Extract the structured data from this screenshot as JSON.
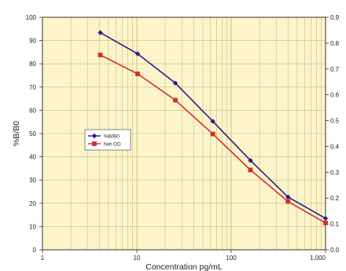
{
  "chart_data": {
    "type": "line",
    "title": "",
    "xlabel": "Concentration pg/mL",
    "ylabel": "%B/B0",
    "xscale": "log",
    "xlim": [
      1,
      1000
    ],
    "ylim": [
      0,
      100
    ],
    "y2lim": [
      0,
      0.9
    ],
    "x_tick_labels": [
      "1",
      "10",
      "100",
      "1,000"
    ],
    "y_tick_labels": [
      "0",
      "10",
      "20",
      "30",
      "40",
      "50",
      "60",
      "70",
      "80",
      "90",
      "100"
    ],
    "y2_tick_labels": [
      "0.0",
      "0.1",
      "0.2",
      "0.3",
      "0.4",
      "0.5",
      "0.6",
      "0.7",
      "0.8",
      "0.9"
    ],
    "grid": true,
    "legend_position": "center-left",
    "background_color": "#fbf5c9",
    "series": [
      {
        "name": "%B/B0",
        "axis": "left",
        "color": "#2e1a8f",
        "marker": "diamond",
        "x": [
          4.1,
          10.2,
          25.6,
          64,
          160,
          400,
          1000
        ],
        "y": [
          93.4,
          84.3,
          71.7,
          55.2,
          38.4,
          22.7,
          13.5
        ]
      },
      {
        "name": "Net OD",
        "axis": "right",
        "color": "#d32f2f",
        "marker": "square",
        "x": [
          4.1,
          10.2,
          25.6,
          64,
          160,
          400,
          1000
        ],
        "y": [
          0.754,
          0.681,
          0.579,
          0.448,
          0.309,
          0.187,
          0.104
        ]
      }
    ]
  }
}
